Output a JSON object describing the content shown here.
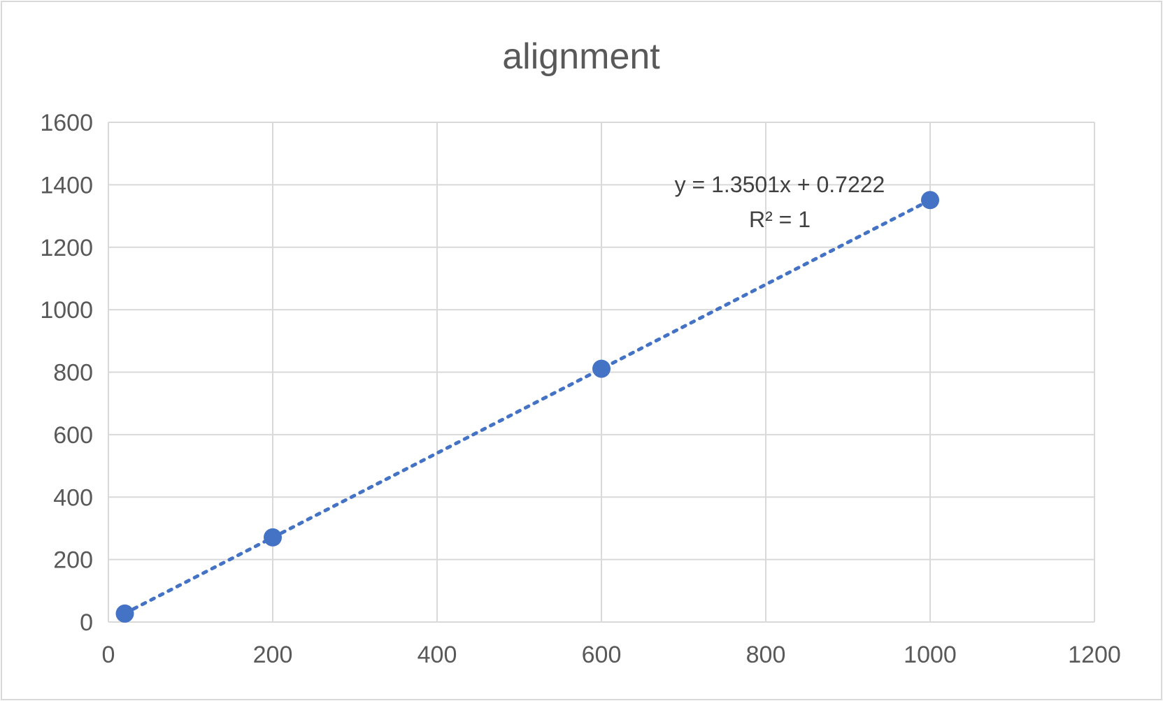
{
  "chart_data": {
    "type": "scatter",
    "title": "alignment",
    "xlabel": "",
    "ylabel": "",
    "xlim": [
      0,
      1200
    ],
    "ylim": [
      0,
      1600
    ],
    "x_ticks": [
      0,
      200,
      400,
      600,
      800,
      1000,
      1200
    ],
    "y_ticks": [
      0,
      200,
      400,
      600,
      800,
      1000,
      1200,
      1400,
      1600
    ],
    "grid": true,
    "legend": "none",
    "series": [
      {
        "x": [
          20,
          200,
          600,
          1000
        ],
        "y": [
          27,
          271,
          811,
          1351
        ],
        "color": "#4472C4"
      }
    ],
    "trendline": {
      "type": "linear",
      "slope": 1.3501,
      "intercept": 0.7222,
      "x_range": [
        20,
        1000
      ],
      "style": "dotted",
      "color": "#4472C4",
      "equation_label": "y = 1.3501x + 0.7222",
      "r2_label": "R² = 1"
    }
  }
}
